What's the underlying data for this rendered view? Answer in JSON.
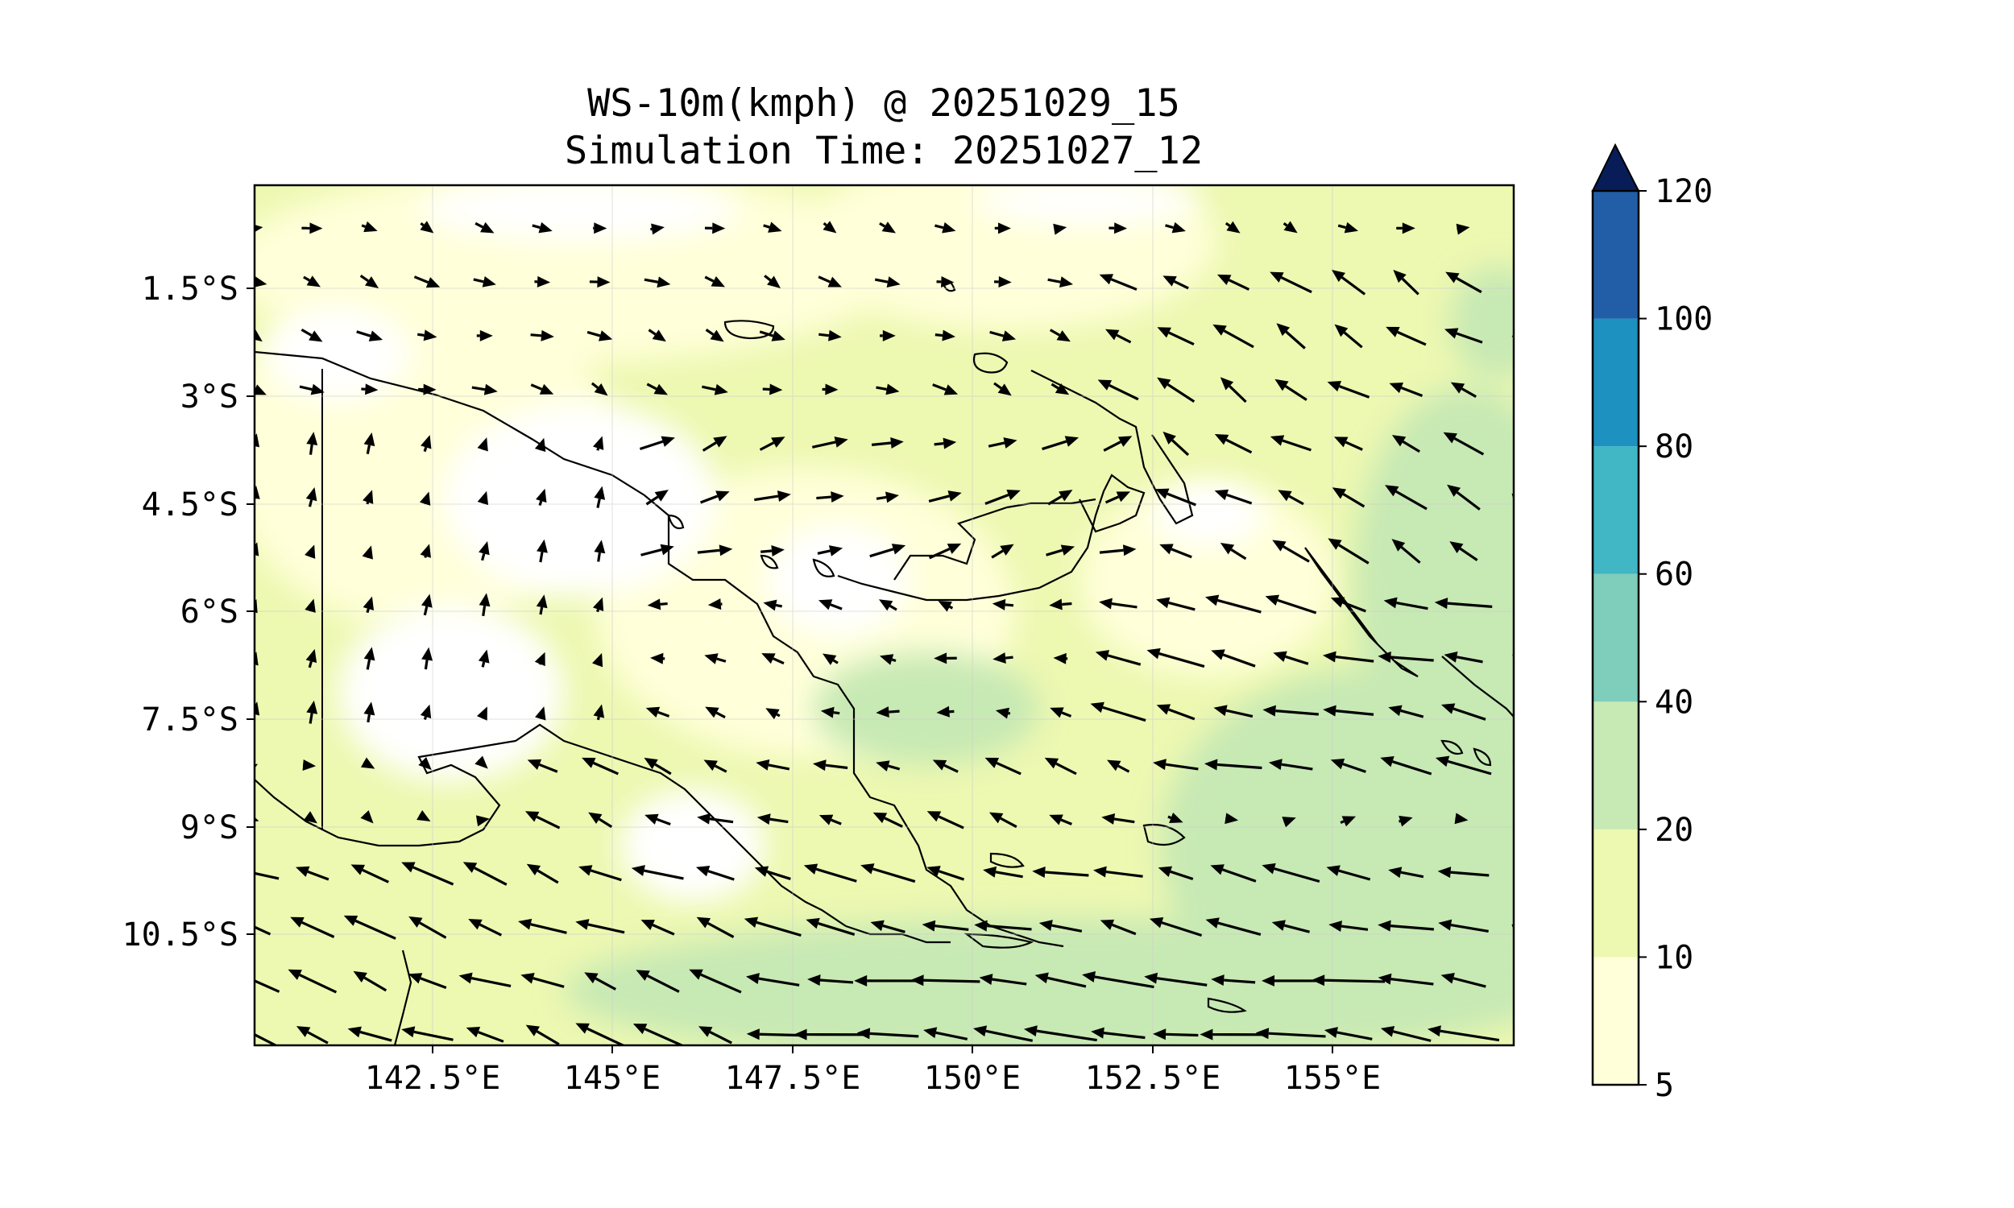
{
  "title_line1": "WS-10m(kmph) @ 20251029_15",
  "title_line2": "Simulation Time: 20251027_12",
  "x_tick_labels": [
    "142.5°E",
    "145°E",
    "147.5°E",
    "150°E",
    "152.5°E",
    "155°E"
  ],
  "y_tick_labels": [
    "1.5°S",
    "3°S",
    "4.5°S",
    "6°S",
    "7.5°S",
    "9°S",
    "10.5°S"
  ],
  "map_extent": {
    "lon": [
      140.0,
      157.5
    ],
    "lat": [
      -12.0,
      0.0
    ]
  },
  "colorbar": {
    "levels": [
      5,
      10,
      20,
      40,
      60,
      80,
      100,
      120
    ],
    "labels": [
      "5",
      "10",
      "20",
      "40",
      "60",
      "80",
      "100",
      "120"
    ],
    "colors": [
      "#ffffd9",
      "#edf8b1",
      "#c7e9b4",
      "#7fcdbb",
      "#41b6c4",
      "#1d91c0",
      "#225ea8",
      "#0c2c84"
    ],
    "extend": "max",
    "extend_color": "#081d58"
  },
  "field_colors": {
    "below_5": "#ffffff",
    "5_10": "#ffffd9",
    "10_20": "#edf8b1",
    "20_40": "#c7e9b4"
  },
  "wind": {
    "lon_start": 140.0,
    "lon_step": 0.8,
    "n_lon": 23,
    "lat_start": -0.6,
    "lat_step": -0.75,
    "n_lat": 16,
    "regions": [
      {
        "lon": [
          140.0,
          157.5
        ],
        "lat": [
          -1.0,
          0.0
        ],
        "u": 8,
        "v": -2
      },
      {
        "lon": [
          140.0,
          152.0
        ],
        "lat": [
          -3.5,
          -1.0
        ],
        "u": 10,
        "v": -3
      },
      {
        "lon": [
          152.0,
          157.5
        ],
        "lat": [
          -5.5,
          -1.0
        ],
        "u": -16,
        "v": 9
      },
      {
        "lon": [
          140.0,
          145.0
        ],
        "lat": [
          -7.5,
          -3.5
        ],
        "u": 2,
        "v": 8
      },
      {
        "lon": [
          145.0,
          152.0
        ],
        "lat": [
          -5.5,
          -3.5
        ],
        "u": 14,
        "v": 4
      },
      {
        "lon": [
          145.0,
          152.0
        ],
        "lat": [
          -7.5,
          -5.5
        ],
        "u": -9,
        "v": 2
      },
      {
        "lon": [
          152.0,
          157.5
        ],
        "lat": [
          -8.5,
          -5.5
        ],
        "u": -22,
        "v": 5
      },
      {
        "lon": [
          140.0,
          143.5
        ],
        "lat": [
          -9.0,
          -7.5
        ],
        "u": 4,
        "v": -1
      },
      {
        "lon": [
          143.5,
          152.0
        ],
        "lat": [
          -9.0,
          -7.5
        ],
        "u": -14,
        "v": 5
      },
      {
        "lon": [
          140.0,
          147.0
        ],
        "lat": [
          -12.0,
          -9.0
        ],
        "u": -20,
        "v": 8
      },
      {
        "lon": [
          147.0,
          157.5
        ],
        "lat": [
          -10.5,
          -9.0
        ],
        "u": -22,
        "v": 5
      },
      {
        "lon": [
          147.0,
          157.5
        ],
        "lat": [
          -12.0,
          -10.5
        ],
        "u": -28,
        "v": 3
      }
    ]
  }
}
